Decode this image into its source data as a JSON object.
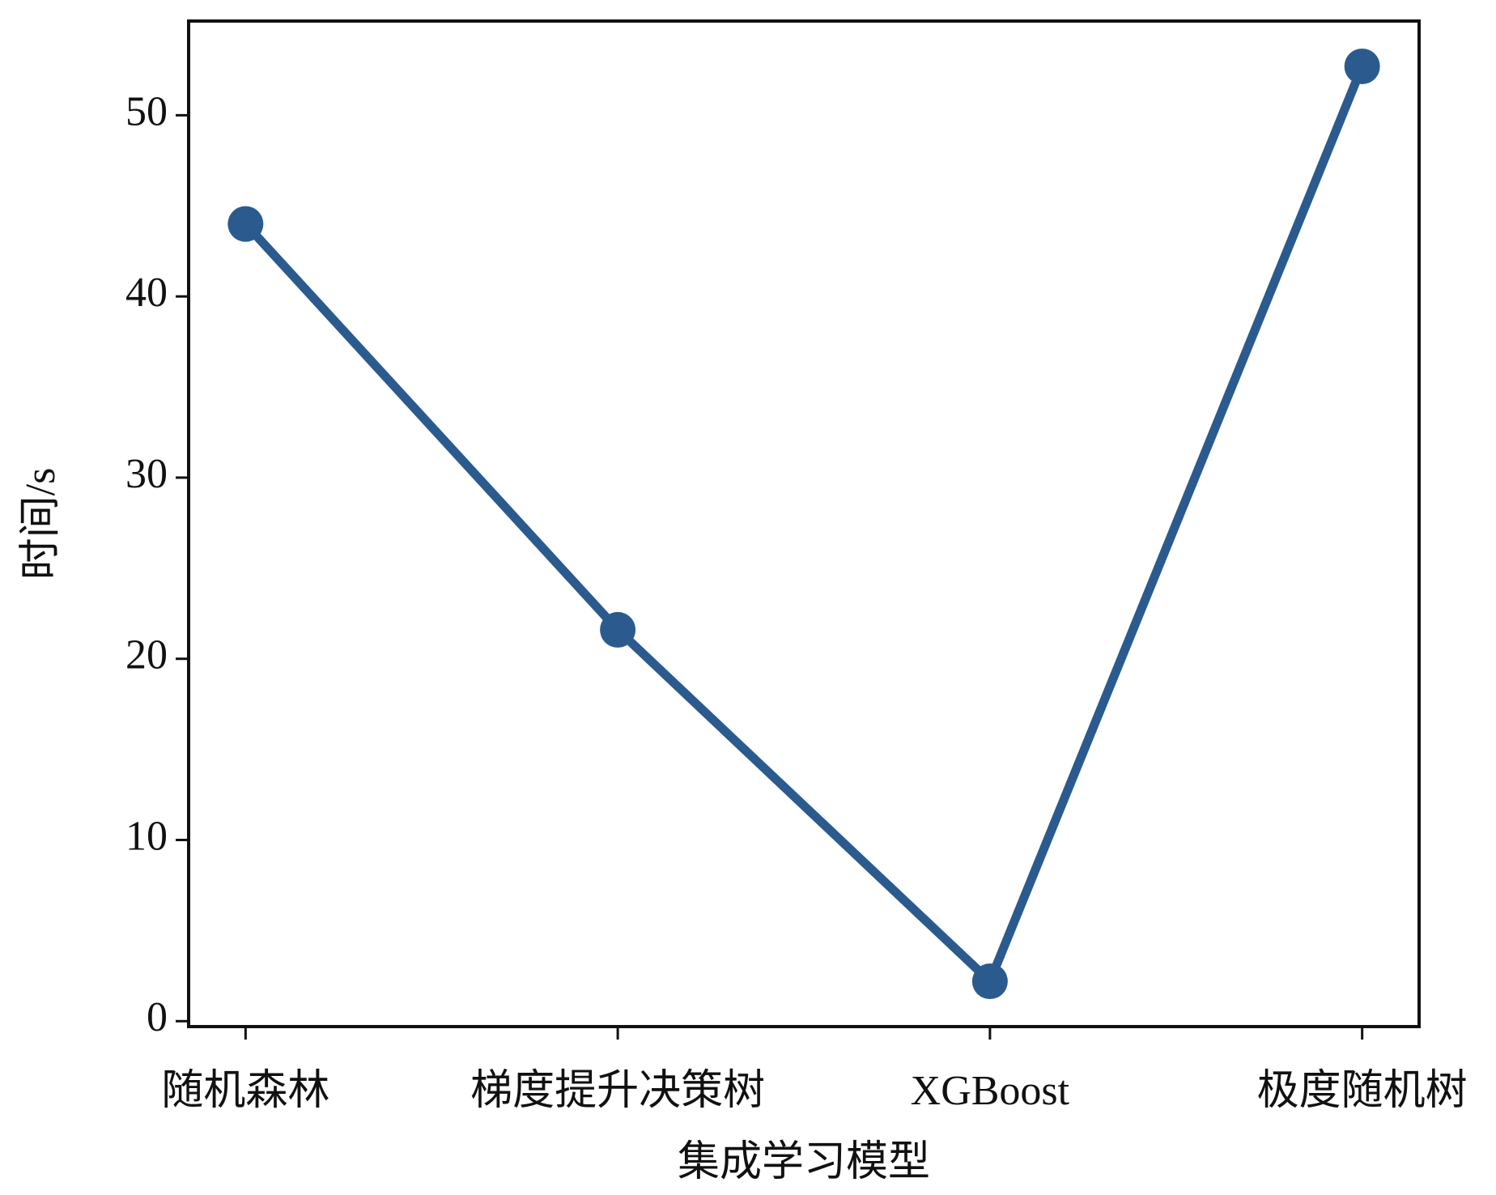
{
  "chart_data": {
    "type": "line",
    "x_label": "集成学习模型",
    "y_label": "时间/s",
    "categories": [
      "随机森林",
      "梯度提升决策树",
      "XGBoost",
      "极度随机树"
    ],
    "series": [
      {
        "name": "时间",
        "color": "#2b5b8e",
        "values": [
          44.0,
          21.6,
          2.2,
          52.7
        ]
      }
    ],
    "ylim": [
      -0.3,
      55.2
    ],
    "yticks": [
      0,
      10,
      20,
      30,
      40,
      50
    ],
    "grid": false
  }
}
